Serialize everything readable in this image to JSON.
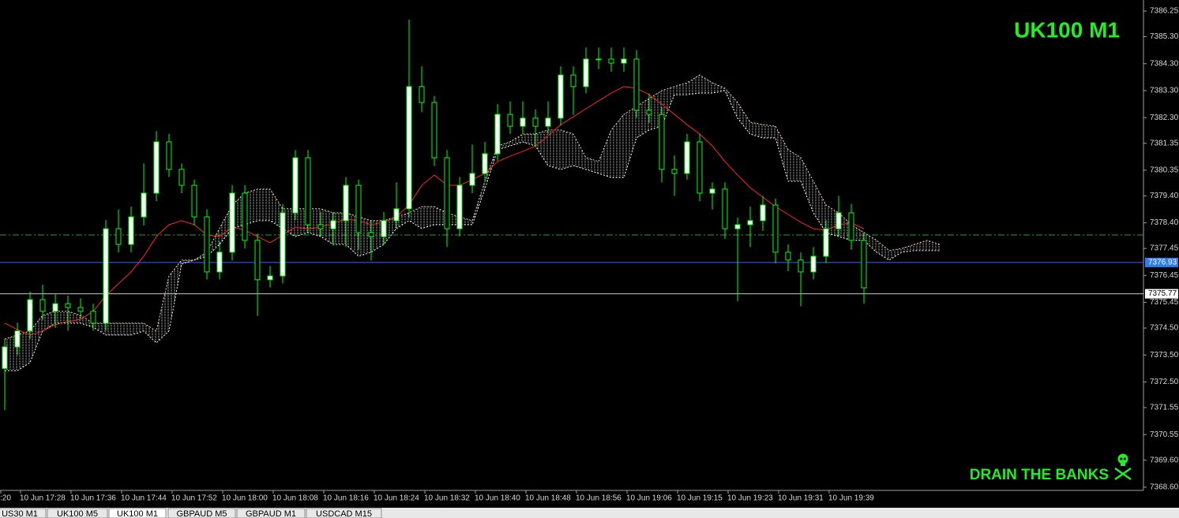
{
  "chart_data": {
    "type": "candlestick",
    "title": "UK100 M1",
    "title_color": "#22ee22",
    "watermark": "DRAIN THE BANKS",
    "up_color": "#ffffff",
    "down_color": "#000000",
    "edge_color": "#00ff00",
    "candles": [
      [
        7373.0,
        7374.1,
        7371.45,
        7373.8
      ],
      [
        7373.8,
        7374.7,
        7373.5,
        7374.39
      ],
      [
        7374.39,
        7375.85,
        7374.1,
        7375.55
      ],
      [
        7375.55,
        7376.1,
        7374.8,
        7375.12
      ],
      [
        7375.12,
        7375.75,
        7374.5,
        7375.4
      ],
      [
        7375.4,
        7375.7,
        7374.4,
        7375.26
      ],
      [
        7375.26,
        7375.6,
        7374.85,
        7375.12
      ],
      [
        7375.12,
        7375.4,
        7374.4,
        7374.68
      ],
      [
        7374.68,
        7378.5,
        7374.4,
        7378.18
      ],
      [
        7378.18,
        7378.9,
        7377.3,
        7377.6
      ],
      [
        7377.6,
        7379.0,
        7377.3,
        7378.62
      ],
      [
        7378.62,
        7380.6,
        7378.3,
        7379.5
      ],
      [
        7379.5,
        7381.8,
        7379.2,
        7381.4
      ],
      [
        7381.4,
        7381.7,
        7380.1,
        7380.38
      ],
      [
        7380.38,
        7380.6,
        7379.5,
        7379.79
      ],
      [
        7379.79,
        7380.0,
        7378.3,
        7378.62
      ],
      [
        7378.62,
        7378.9,
        7376.3,
        7376.58
      ],
      [
        7376.58,
        7377.7,
        7376.3,
        7377.31
      ],
      [
        7377.31,
        7379.8,
        7377.0,
        7379.5
      ],
      [
        7379.5,
        7379.8,
        7377.45,
        7377.75
      ],
      [
        7377.75,
        7378.0,
        7374.95,
        7376.29
      ],
      [
        7376.29,
        7376.8,
        7376.0,
        7376.43
      ],
      [
        7376.43,
        7379.1,
        7376.15,
        7378.77
      ],
      [
        7378.77,
        7381.1,
        7378.5,
        7380.81
      ],
      [
        7380.81,
        7381.1,
        7378.0,
        7378.33
      ],
      [
        7378.33,
        7378.8,
        7377.9,
        7378.18
      ],
      [
        7378.18,
        7378.8,
        7377.55,
        7378.48
      ],
      [
        7378.48,
        7380.1,
        7377.5,
        7379.79
      ],
      [
        7379.79,
        7380.0,
        7377.4,
        7378.04
      ],
      [
        7378.04,
        7378.5,
        7377.0,
        7377.89
      ],
      [
        7377.89,
        7378.8,
        7377.6,
        7378.48
      ],
      [
        7378.48,
        7379.9,
        7378.2,
        7378.92
      ],
      [
        7378.92,
        7385.93,
        7378.6,
        7383.45
      ],
      [
        7383.45,
        7384.2,
        7382.5,
        7382.86
      ],
      [
        7382.86,
        7383.1,
        7380.5,
        7380.81
      ],
      [
        7380.81,
        7381.1,
        7377.5,
        7378.18
      ],
      [
        7378.18,
        7380.1,
        7377.9,
        7379.79
      ],
      [
        7379.79,
        7381.3,
        7379.5,
        7380.23
      ],
      [
        7380.23,
        7381.4,
        7379.9,
        7380.96
      ],
      [
        7380.96,
        7382.8,
        7380.7,
        7382.42
      ],
      [
        7382.42,
        7382.9,
        7381.7,
        7381.98
      ],
      [
        7381.98,
        7382.9,
        7381.7,
        7382.28
      ],
      [
        7382.28,
        7382.6,
        7381.2,
        7381.98
      ],
      [
        7381.98,
        7382.9,
        7381.7,
        7382.28
      ],
      [
        7382.28,
        7384.2,
        7382.0,
        7383.88
      ],
      [
        7383.88,
        7384.2,
        7382.4,
        7383.45
      ],
      [
        7383.45,
        7384.9,
        7383.2,
        7384.47
      ],
      [
        7384.47,
        7384.9,
        7384.1,
        7384.47
      ],
      [
        7384.47,
        7384.9,
        7384.0,
        7384.32
      ],
      [
        7384.32,
        7384.9,
        7384.0,
        7384.47
      ],
      [
        7384.47,
        7384.8,
        7382.3,
        7382.57
      ],
      [
        7382.57,
        7383.2,
        7382.1,
        7382.42
      ],
      [
        7382.42,
        7382.7,
        7379.9,
        7380.38
      ],
      [
        7380.38,
        7380.9,
        7379.4,
        7380.23
      ],
      [
        7380.23,
        7381.7,
        7380.0,
        7381.4
      ],
      [
        7381.4,
        7381.7,
        7379.2,
        7379.5
      ],
      [
        7379.5,
        7379.9,
        7378.9,
        7379.65
      ],
      [
        7379.65,
        7379.9,
        7377.8,
        7378.18
      ],
      [
        7378.18,
        7378.6,
        7375.5,
        7378.33
      ],
      [
        7378.33,
        7379.0,
        7377.5,
        7378.48
      ],
      [
        7378.48,
        7379.4,
        7378.1,
        7379.06
      ],
      [
        7379.06,
        7379.3,
        7376.9,
        7377.31
      ],
      [
        7377.31,
        7377.6,
        7376.6,
        7377.02
      ],
      [
        7377.02,
        7377.3,
        7375.3,
        7376.58
      ],
      [
        7376.58,
        7377.5,
        7376.3,
        7377.16
      ],
      [
        7377.16,
        7378.5,
        7376.9,
        7378.18
      ],
      [
        7378.18,
        7379.4,
        7377.9,
        7378.77
      ],
      [
        7378.77,
        7379.1,
        7377.4,
        7377.75
      ],
      [
        7377.75,
        7378.0,
        7375.4,
        7375.99
      ]
    ],
    "ma": {
      "color": "#ff2020",
      "values": [
        7374.68,
        7374.44,
        7374.24,
        7374.39,
        7374.62,
        7374.74,
        7374.82,
        7375.12,
        7375.7,
        7376.14,
        7376.58,
        7377.16,
        7377.89,
        7378.33,
        7378.48,
        7378.33,
        7377.95,
        7377.89,
        7378.24,
        7378.13,
        7377.89,
        7377.66,
        7377.95,
        7378.24,
        7378.18,
        7378.24,
        7378.39,
        7378.54,
        7378.48,
        7378.33,
        7378.42,
        7378.62,
        7379.06,
        7379.79,
        7380.17,
        7379.79,
        7379.79,
        7380.0,
        7380.23,
        7380.67,
        7380.87,
        7381.05,
        7381.25,
        7381.63,
        7382.04,
        7382.33,
        7382.63,
        7382.92,
        7383.21,
        7383.45,
        7383.39,
        7383.15,
        7382.8,
        7382.42,
        7382.04,
        7381.69,
        7381.25,
        7380.67,
        7380.17,
        7379.7,
        7379.35,
        7379.0,
        7378.71,
        7378.42,
        7378.18,
        7378.13,
        7378.33,
        7378.39,
        7378.18
      ]
    },
    "cloud": {
      "color_a": "#ffdab0",
      "color_b": "#ffffff",
      "span_a": [
        7374.09,
        7374.24,
        7374.39,
        7374.97,
        7375.12,
        7375.12,
        7374.97,
        7374.68,
        7374.68,
        7374.68,
        7374.68,
        7374.68,
        7374.39,
        7376.43,
        7377.02,
        7377.02,
        7377.31,
        7378.19,
        7379.06,
        7379.5,
        7379.65,
        7379.65,
        7378.92,
        7378.92,
        7378.92,
        7378.92,
        7378.77,
        7378.77,
        7378.62,
        7378.48,
        7378.48,
        7378.62,
        7378.77,
        7379.0,
        7379.0,
        7378.77,
        7378.62,
        7378.48,
        7379.94,
        7381.25,
        7381.4,
        7381.69,
        7381.69,
        7381.84,
        7381.84,
        7381.69,
        7380.82,
        7380.67,
        7381.84,
        7382.42,
        7382.71,
        7383.01,
        7383.3,
        7383.45,
        7383.59,
        7383.88,
        7383.59,
        7383.39,
        7382.86,
        7382.13,
        7382.04,
        7381.98,
        7381.11,
        7380.82,
        7379.94,
        7379.06,
        7378.77,
        7378.33,
        7378.04,
        7377.75,
        7377.37,
        7377.45,
        7377.6,
        7377.75,
        7377.6
      ],
      "span_b": [
        7372.92,
        7372.92,
        7373.22,
        7374.39,
        7374.68,
        7374.68,
        7374.68,
        7374.53,
        7374.24,
        7374.24,
        7374.24,
        7374.39,
        7373.95,
        7374.39,
        7376.87,
        7377.02,
        7377.16,
        7377.6,
        7378.19,
        7378.33,
        7378.48,
        7378.48,
        7378.19,
        7377.89,
        7378.04,
        7377.89,
        7377.6,
        7377.6,
        7377.16,
        7377.31,
        7377.6,
        7378.19,
        7378.48,
        7378.19,
        7378.33,
        7378.33,
        7378.33,
        7378.33,
        7379.65,
        7381.11,
        7381.25,
        7381.4,
        7381.25,
        7380.52,
        7380.38,
        7380.52,
        7380.38,
        7380.23,
        7380.08,
        7380.08,
        7381.55,
        7381.84,
        7381.98,
        7383.15,
        7383.15,
        7383.21,
        7383.21,
        7383.3,
        7382.28,
        7381.69,
        7381.55,
        7381.55,
        7379.94,
        7379.94,
        7378.77,
        7378.04,
        7377.89,
        7377.75,
        7377.75,
        7377.31,
        7377.02,
        7377.31,
        7377.37,
        7377.37,
        7377.37
      ]
    },
    "levels": [
      {
        "value": 7377.95,
        "color": "#1fa01f"
      }
    ],
    "price_lines": [
      {
        "value": 7376.93,
        "color": "#3a64ff",
        "label_bg": "#2f7cf0",
        "label_color": "#ffffff"
      },
      {
        "value": 7375.77,
        "color": "#c8c8c8",
        "label_bg": "#ffffff",
        "label_color": "#000000"
      }
    ],
    "x_labels": [
      ":20",
      "10 Jun 17:28",
      "10 Jun 17:36",
      "10 Jun 17:44",
      "10 Jun 17:52",
      "10 Jun 18:00",
      "10 Jun 18:08",
      "10 Jun 18:16",
      "10 Jun 18:24",
      "10 Jun 18:32",
      "10 Jun 18:40",
      "10 Jun 18:48",
      "10 Jun 18:56",
      "10 Jun 19:06",
      "10 Jun 19:15",
      "10 Jun 19:23",
      "10 Jun 19:31",
      "10 Jun 19:39"
    ],
    "ylim": [
      7368.48,
      7386.66
    ],
    "yticks": [
      7386.25,
      {
        "value": 7385.3,
        "label": "7385.30"
      },
      {
        "value": 7384.3,
        "label": "7384.30"
      },
      {
        "value": 7383.3,
        "label": "7383.30"
      },
      {
        "value": 7382.3,
        "label": "7382.30"
      },
      7381.35,
      7380.35,
      {
        "value": 7379.4,
        "label": "7379.40"
      },
      {
        "value": 7378.4,
        "label": "7378.40"
      },
      7377.45,
      7376.45,
      7375.45,
      {
        "value": 7374.5,
        "label": "7374.50"
      },
      {
        "value": 7373.5,
        "label": "7373.50"
      },
      {
        "value": 7372.5,
        "label": "7372.50"
      },
      7371.55,
      7370.55,
      {
        "value": 7369.6,
        "label": "7369.60"
      },
      {
        "value": 7368.6,
        "label": "7368.60"
      }
    ]
  },
  "tabs": [
    {
      "label": "US30 M1"
    },
    {
      "label": "UK100 M5"
    },
    {
      "label": "UK100 M1",
      "active": true
    },
    {
      "label": "GBPAUD M5"
    },
    {
      "label": "GBPAUD M1"
    },
    {
      "label": "USDCAD M15"
    }
  ]
}
